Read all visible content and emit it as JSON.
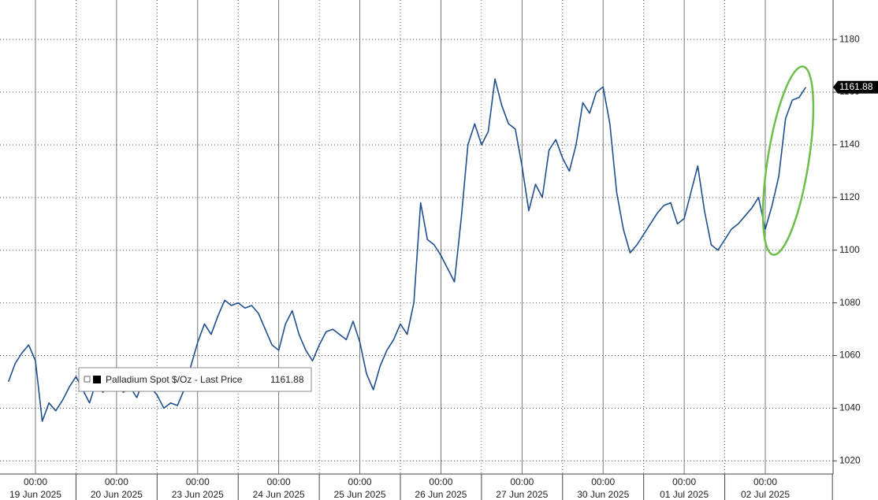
{
  "chart_data": {
    "type": "line",
    "tick_time": "00:00",
    "categories": [
      null,
      null,
      null,
      null,
      "19 Jun 2025",
      null,
      null,
      null,
      null,
      null,
      null,
      null,
      null,
      null,
      null,
      null,
      "20 Jun 2025",
      null,
      null,
      null,
      null,
      null,
      null,
      null,
      null,
      null,
      null,
      null,
      "23 Jun 2025",
      null,
      null,
      null,
      null,
      null,
      null,
      null,
      null,
      null,
      null,
      null,
      "24 Jun 2025",
      null,
      null,
      null,
      null,
      null,
      null,
      null,
      null,
      null,
      null,
      null,
      "25 Jun 2025",
      null,
      null,
      null,
      null,
      null,
      null,
      null,
      null,
      null,
      null,
      null,
      "26 Jun 2025",
      null,
      null,
      null,
      null,
      null,
      null,
      null,
      null,
      null,
      null,
      null,
      "27 Jun 2025",
      null,
      null,
      null,
      null,
      null,
      null,
      null,
      null,
      null,
      null,
      null,
      "30 Jun 2025",
      null,
      null,
      null,
      null,
      null,
      null,
      null,
      null,
      null,
      null,
      null,
      "01 Jul 2025",
      null,
      null,
      null,
      null,
      null,
      null,
      null,
      null,
      null,
      null,
      null,
      "02 Jul 2025",
      null,
      null,
      null,
      null,
      null,
      null
    ],
    "series": [
      {
        "name": "Palladium Spot $/Oz - Last Price",
        "color": "#1f4f8f",
        "values": [
          1050,
          1057,
          1061,
          1064,
          1058,
          1035,
          1042,
          1039,
          1043,
          1048,
          1052,
          1047,
          1042,
          1050,
          1046,
          1050,
          1050,
          1046,
          1048,
          1044,
          1051,
          1048,
          1045,
          1040,
          1042,
          1041,
          1047,
          1056,
          1065,
          1072,
          1068,
          1075,
          1081,
          1079,
          1080,
          1078,
          1079,
          1076,
          1070,
          1064,
          1062,
          1072,
          1077,
          1068,
          1062,
          1058,
          1064,
          1069,
          1070,
          1068,
          1066,
          1073,
          1065,
          1053,
          1047,
          1056,
          1062,
          1066,
          1072,
          1068,
          1080,
          1118,
          1104,
          1102,
          1098,
          1093,
          1088,
          1112,
          1140,
          1148,
          1140,
          1145,
          1165,
          1155,
          1148,
          1146,
          1132,
          1115,
          1125,
          1120,
          1138,
          1142,
          1135,
          1130,
          1140,
          1156,
          1152,
          1160,
          1162,
          1148,
          1122,
          1108,
          1099,
          1102,
          1106,
          1110,
          1114,
          1117,
          1118,
          1110,
          1112,
          1122,
          1132,
          1115,
          1102,
          1100,
          1104,
          1108,
          1110,
          1113,
          1116,
          1120,
          1108,
          1117,
          1128,
          1150,
          1157,
          1158,
          1161.88
        ]
      }
    ],
    "ylim": [
      1015,
      1195
    ],
    "yticks": [
      1020,
      1040,
      1060,
      1080,
      1100,
      1120,
      1140,
      1160,
      1180
    ],
    "grid": true
  }
}
